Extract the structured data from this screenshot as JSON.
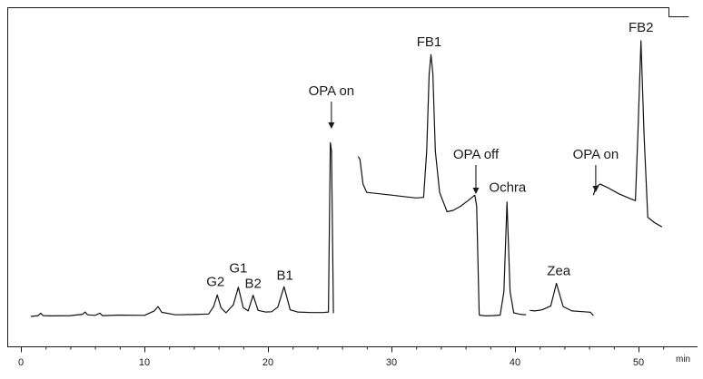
{
  "chart_data": {
    "type": "line",
    "x_unit_label": "min",
    "xlim": [
      0,
      54
    ],
    "ylim": [
      0,
      100
    ],
    "x_ticks": [
      0,
      10,
      20,
      30,
      40,
      50
    ],
    "x_tick_labels": [
      "0",
      "10",
      "20",
      "30",
      "40",
      "50"
    ],
    "minor_tick_step": 2,
    "grid": false,
    "y_axis_labels": false,
    "peaks": [
      {
        "label": "G2",
        "x": 15.9,
        "y": 8
      },
      {
        "label": "G1",
        "x": 17.6,
        "y": 11
      },
      {
        "label": "B2",
        "x": 18.8,
        "y": 8
      },
      {
        "label": "B1",
        "x": 21.3,
        "y": 11
      },
      {
        "label": "FB1",
        "x": 33.2,
        "y": 95
      },
      {
        "label": "Ochra",
        "x": 39.4,
        "y": 42
      },
      {
        "label": "Zea",
        "x": 43.4,
        "y": 12
      },
      {
        "label": "FB2",
        "x": 50.2,
        "y": 100
      }
    ],
    "events": [
      {
        "label": "OPA on",
        "x": 25.1
      },
      {
        "label": "OPA off",
        "x": 36.8
      },
      {
        "label": "OPA on",
        "x": 46.5
      }
    ],
    "series": [
      {
        "x": [
          0.8,
          1.4,
          1.6,
          1.8,
          2.5,
          4.0,
          5.0,
          5.2,
          5.4,
          6.0,
          6.4,
          6.6,
          8.0,
          10.0,
          10.8,
          11.1,
          11.4,
          12.5,
          14.0,
          15.2,
          15.6,
          15.9,
          16.2,
          16.6,
          17.2,
          17.6,
          18.0,
          18.4,
          18.8,
          19.2,
          19.8,
          20.3,
          20.8,
          21.3,
          21.8,
          22.4,
          23.5,
          24.5,
          24.9,
          25.05,
          25.15,
          25.3
        ],
        "y": [
          0,
          0.3,
          1.2,
          0.3,
          0.2,
          0.3,
          0.8,
          1.6,
          0.6,
          0.4,
          1.2,
          0.3,
          0.5,
          0.4,
          2.0,
          3.6,
          1.5,
          0.6,
          0.7,
          0.9,
          3.6,
          7.8,
          3.2,
          1.3,
          4.2,
          10.6,
          3.2,
          2.0,
          7.7,
          2.2,
          1.6,
          1.7,
          3.4,
          10.8,
          2.4,
          1.6,
          1.4,
          1.4,
          1.6,
          63,
          60,
          1.2
        ]
      },
      {
        "x": [
          27.3,
          27.45,
          27.7,
          28.0,
          29.0,
          30.0,
          31.0,
          32.0,
          32.6,
          32.85,
          33.05,
          33.2,
          33.35,
          33.55,
          33.9,
          34.5,
          35.0,
          35.6,
          36.2,
          36.75,
          36.9,
          37.1
        ],
        "y": [
          58,
          57,
          48,
          45,
          44.5,
          44,
          43.5,
          43,
          43.2,
          60,
          88,
          95,
          88,
          60,
          45,
          38,
          38.5,
          40,
          42,
          44,
          40,
          0.5
        ]
      },
      {
        "x": [
          37.1,
          37.6,
          38.2,
          38.8,
          39.1,
          39.35,
          39.6,
          39.9,
          40.4,
          40.9
        ],
        "y": [
          0.5,
          0.2,
          0.3,
          0.5,
          9,
          41.5,
          9,
          1.3,
          0.8,
          0.6
        ]
      },
      {
        "x": [
          41.2,
          41.6,
          42.2,
          42.9,
          43.35,
          43.9,
          44.6,
          45.6,
          46.1,
          46.35
        ],
        "y": [
          2.2,
          2.0,
          2.4,
          3.8,
          12,
          3.6,
          2.0,
          1.7,
          1.5,
          0.3
        ]
      },
      {
        "x": [
          46.35,
          46.55,
          46.9,
          47.6,
          48.4,
          49.2,
          49.75,
          49.95,
          50.2,
          50.45,
          50.75,
          51.3,
          51.9
        ],
        "y": [
          44,
          47,
          48,
          46.5,
          44.5,
          43,
          42,
          66,
          100,
          66,
          36,
          34,
          32.5
        ]
      }
    ]
  }
}
